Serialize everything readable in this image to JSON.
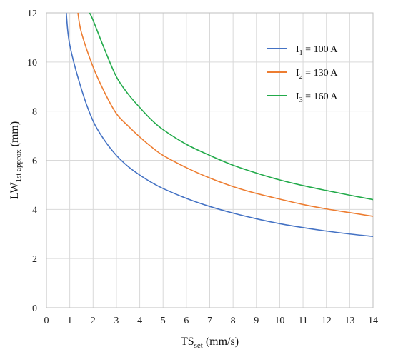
{
  "chart_data": {
    "type": "line",
    "title": "",
    "xlabel": {
      "main": "TS",
      "sub": "set",
      "unit": " (mm/s)"
    },
    "ylabel": {
      "main": "LW",
      "sub": "1st approx",
      "unit": " (mm)"
    },
    "xlim": [
      0,
      14
    ],
    "ylim": [
      0,
      12
    ],
    "xticks": [
      0,
      1,
      2,
      3,
      4,
      5,
      6,
      7,
      8,
      9,
      10,
      11,
      12,
      13,
      14
    ],
    "yticks": [
      0,
      2,
      4,
      6,
      8,
      10,
      12
    ],
    "grid": true,
    "legend_position": "top-right",
    "series": [
      {
        "name": "I1 = 100 A",
        "label_main": "I",
        "label_sub": "1",
        "label_rest": " = 100 A",
        "color": "#4472C4",
        "points": [
          [
            0.85,
            12.0
          ],
          [
            1,
            10.7
          ],
          [
            1.5,
            8.9
          ],
          [
            2,
            7.6
          ],
          [
            2.5,
            6.8
          ],
          [
            3,
            6.2
          ],
          [
            3.5,
            5.75
          ],
          [
            4,
            5.4
          ],
          [
            4.5,
            5.1
          ],
          [
            5,
            4.85
          ],
          [
            6,
            4.45
          ],
          [
            7,
            4.12
          ],
          [
            8,
            3.85
          ],
          [
            9,
            3.62
          ],
          [
            10,
            3.42
          ],
          [
            11,
            3.26
          ],
          [
            12,
            3.12
          ],
          [
            13,
            3.0
          ],
          [
            14,
            2.9
          ]
        ]
      },
      {
        "name": "I2 = 130 A",
        "label_main": "I",
        "label_sub": "2",
        "label_rest": " = 130 A",
        "color": "#ED7D31",
        "points": [
          [
            1.35,
            12.0
          ],
          [
            1.5,
            11.2
          ],
          [
            2,
            9.8
          ],
          [
            2.5,
            8.75
          ],
          [
            3,
            7.9
          ],
          [
            3.5,
            7.4
          ],
          [
            4,
            6.95
          ],
          [
            4.5,
            6.55
          ],
          [
            5,
            6.2
          ],
          [
            6,
            5.7
          ],
          [
            7,
            5.28
          ],
          [
            8,
            4.93
          ],
          [
            9,
            4.65
          ],
          [
            10,
            4.42
          ],
          [
            11,
            4.2
          ],
          [
            12,
            4.02
          ],
          [
            13,
            3.87
          ],
          [
            14,
            3.72
          ]
        ]
      },
      {
        "name": "I3 = 160 A",
        "label_main": "I",
        "label_sub": "3",
        "label_rest": " = 160 A",
        "color": "#22AA4A",
        "points": [
          [
            1.85,
            12.0
          ],
          [
            2,
            11.7
          ],
          [
            2.5,
            10.5
          ],
          [
            3,
            9.4
          ],
          [
            3.5,
            8.7
          ],
          [
            4,
            8.15
          ],
          [
            4.5,
            7.65
          ],
          [
            5,
            7.25
          ],
          [
            6,
            6.65
          ],
          [
            7,
            6.2
          ],
          [
            8,
            5.8
          ],
          [
            9,
            5.48
          ],
          [
            10,
            5.2
          ],
          [
            11,
            4.97
          ],
          [
            12,
            4.77
          ],
          [
            13,
            4.58
          ],
          [
            14,
            4.4
          ]
        ]
      }
    ]
  }
}
